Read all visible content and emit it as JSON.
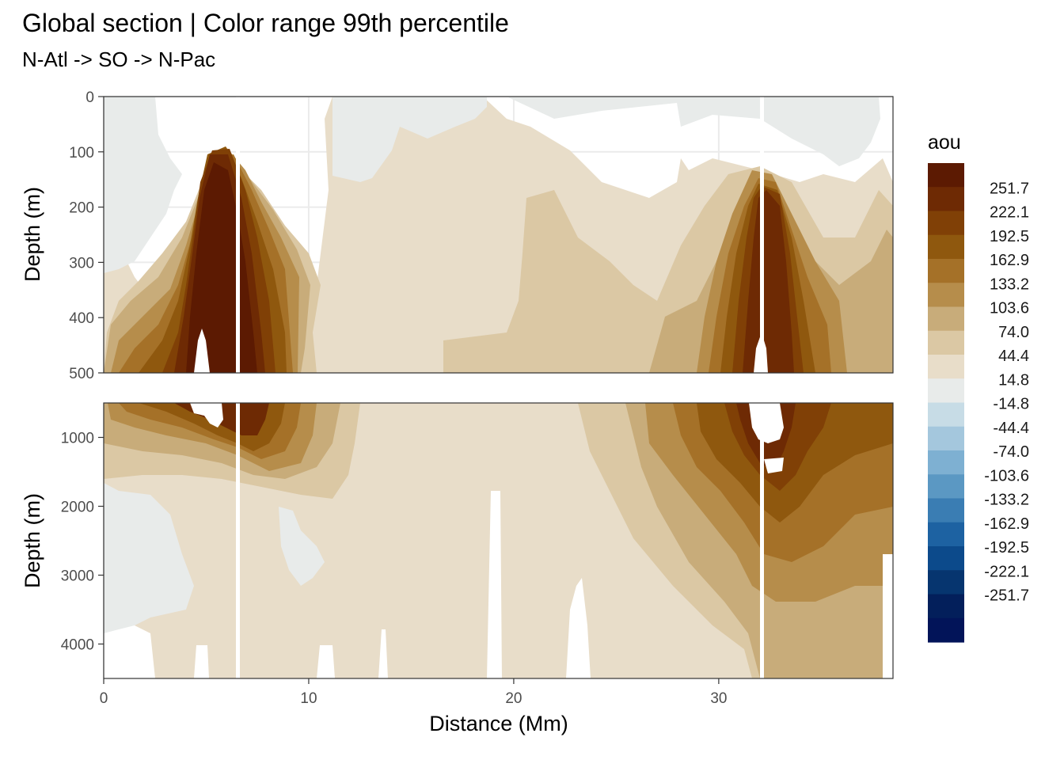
{
  "chart_data": {
    "type": "heatmap",
    "title": "Global section | Color range 99th percentile",
    "subtitle": "N-Atl -> SO -> N-Pac",
    "xlabel": "Distance (Mm)",
    "ylabel": "Depth (m)",
    "xlim": [
      0,
      38.5
    ],
    "x_ticks": [
      "0",
      "10",
      "20",
      "30"
    ],
    "x_tick_values": [
      0,
      10,
      20,
      30
    ],
    "panels": [
      {
        "name": "upper",
        "ylim": [
          0,
          500
        ],
        "y_ticks": [
          "0",
          "100",
          "200",
          "300",
          "400",
          "500"
        ],
        "y_tick_values": [
          0,
          100,
          200,
          300,
          400,
          500
        ]
      },
      {
        "name": "lower",
        "ylim": [
          500,
          4500
        ],
        "y_ticks": [
          "1000",
          "2000",
          "3000",
          "4000"
        ],
        "y_tick_values": [
          1000,
          2000,
          3000,
          4000
        ]
      }
    ],
    "legend": {
      "title": "aou",
      "position": "right",
      "breaks": [
        "251.7",
        "222.1",
        "192.5",
        "162.9",
        "133.2",
        "103.6",
        "74.0",
        "44.4",
        "14.8",
        "-14.8",
        "-44.4",
        "-74.0",
        "-103.6",
        "-133.2",
        "-162.9",
        "-192.5",
        "-222.1",
        "-251.7"
      ],
      "colors": [
        "#5c1a02",
        "#6e2a04",
        "#804006",
        "#8f580e",
        "#a57128",
        "#b68d4b",
        "#c8ac7a",
        "#dbc8a4",
        "#e8ddc9",
        "#e8ebea",
        "#c7dce6",
        "#a4c7dd",
        "#7eb0d2",
        "#5b98c3",
        "#3a7db3",
        "#1d62a2",
        "#0c4a8b",
        "#06356f",
        "#031f5b",
        "#021459"
      ]
    },
    "features": [
      {
        "name": "N-Atlantic high AOU core",
        "x_center": 5.1,
        "depth_top": 90,
        "depth_bottom": 1500,
        "aou_peak": 260
      },
      {
        "name": "N-Pacific high AOU core",
        "x_center": 32.3,
        "depth_top": 150,
        "depth_bottom": 2500,
        "aou_peak": 260
      },
      {
        "name": "surface near-zero AOU region",
        "aou": 0
      },
      {
        "name": "deep Atlantic near-zero AOU region",
        "x_range": [
          0,
          4.4
        ],
        "depth_range": [
          1800,
          4000
        ],
        "aou": 0
      }
    ],
    "grid": true
  }
}
